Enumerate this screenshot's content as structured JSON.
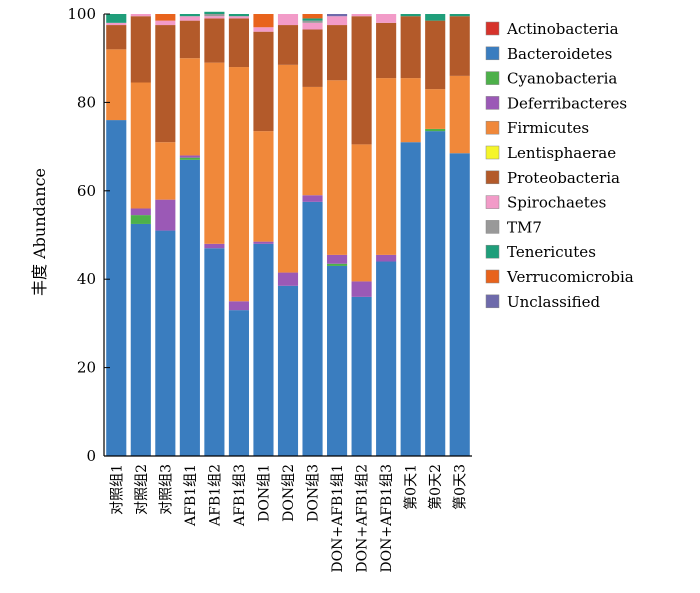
{
  "chart_data": {
    "type": "bar",
    "stacked": true,
    "title": "",
    "xlabel": "",
    "ylabel": "丰度 Abundance",
    "ylim": [
      0,
      100
    ],
    "yticks": [
      0,
      20,
      40,
      60,
      80,
      100
    ],
    "grid": false,
    "legend_position": "right",
    "categories": [
      "对照组1",
      "对照组2",
      "对照组3",
      "AFB1组1",
      "AFB1组2",
      "AFB1组3",
      "DON组1",
      "DON组2",
      "DON组3",
      "DON+AFB1组1",
      "DON+AFB1组2",
      "DON+AFB1组3",
      "第0天1",
      "第0天2",
      "第0天3"
    ],
    "series": [
      {
        "name": "Bacteroidetes",
        "color": "#3a7dbf",
        "values": [
          76,
          52.5,
          51,
          67,
          47,
          33,
          48,
          38.5,
          57.5,
          43,
          36,
          44,
          71,
          73.5,
          68.5
        ]
      },
      {
        "name": "Cyanobacteria",
        "color": "#4db04a",
        "values": [
          0,
          2,
          0,
          0.5,
          0,
          0,
          0,
          0,
          0,
          0.5,
          0,
          0,
          0,
          0.5,
          0
        ]
      },
      {
        "name": "Deferribacteres",
        "color": "#9b59b6",
        "values": [
          0,
          1.5,
          7,
          0.5,
          1,
          2,
          0.5,
          3,
          1.5,
          2,
          3.5,
          1.5,
          0,
          0,
          0
        ]
      },
      {
        "name": "Firmicutes",
        "color": "#f0883a",
        "values": [
          16,
          28.5,
          13,
          22,
          41,
          53,
          25,
          47,
          24.5,
          39.5,
          31,
          40,
          14.5,
          9,
          17.5
        ]
      },
      {
        "name": "Proteobacteria",
        "color": "#b35a2a",
        "values": [
          5.5,
          15,
          26.5,
          8.5,
          10,
          11,
          22.5,
          9,
          13,
          12.5,
          29,
          12.5,
          14,
          15.5,
          13.5
        ]
      },
      {
        "name": "Spirochaetes",
        "color": "#f29bc8",
        "values": [
          0.5,
          0.5,
          1,
          1,
          0.5,
          0.5,
          1,
          2.5,
          1.5,
          2,
          0.5,
          2,
          0,
          0,
          0
        ]
      },
      {
        "name": "TM7",
        "color": "#999999",
        "values": [
          0,
          0,
          0,
          0,
          0.5,
          0,
          0,
          0,
          0.5,
          0,
          0,
          0,
          0,
          0,
          0
        ]
      },
      {
        "name": "Tenericutes",
        "color": "#1f9e7a",
        "values": [
          2,
          0,
          0,
          0.5,
          0.5,
          0.5,
          0,
          0,
          0.5,
          0,
          0,
          0,
          0.5,
          1.5,
          0.5
        ]
      },
      {
        "name": "Verrucomicrobia",
        "color": "#e8631c",
        "values": [
          0,
          0,
          1.5,
          0,
          0,
          0,
          3,
          0,
          1,
          0,
          0,
          0,
          0,
          0,
          0
        ]
      },
      {
        "name": "Unclassified",
        "color": "#6e6aab",
        "values": [
          0,
          0,
          0,
          0,
          0,
          0,
          0,
          0,
          0,
          0.5,
          0,
          0,
          0,
          0,
          0
        ]
      }
    ],
    "legend": [
      {
        "name": "Actinobacteria",
        "color": "#d6332b"
      },
      {
        "name": "Bacteroidetes",
        "color": "#3a7dbf"
      },
      {
        "name": "Cyanobacteria",
        "color": "#4db04a"
      },
      {
        "name": "Deferribacteres",
        "color": "#9b59b6"
      },
      {
        "name": "Firmicutes",
        "color": "#f0883a"
      },
      {
        "name": "Lentisphaerae",
        "color": "#f5f52a"
      },
      {
        "name": "Proteobacteria",
        "color": "#b35a2a"
      },
      {
        "name": "Spirochaetes",
        "color": "#f29bc8"
      },
      {
        "name": "TM7",
        "color": "#999999"
      },
      {
        "name": "Tenericutes",
        "color": "#1f9e7a"
      },
      {
        "name": "Verrucomicrobia",
        "color": "#e8631c"
      },
      {
        "name": "Unclassified",
        "color": "#6e6aab"
      }
    ]
  }
}
